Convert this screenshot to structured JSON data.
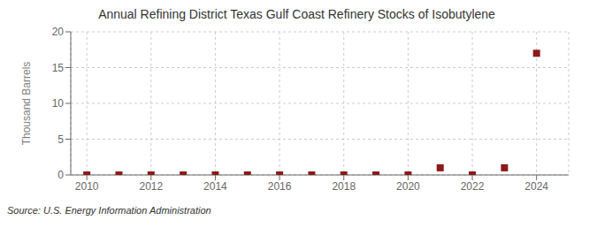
{
  "chart_data": {
    "type": "scatter",
    "title": "Annual Refining District Texas Gulf Coast Refinery Stocks of Isobutylene",
    "ylabel": "Thousand Barrels",
    "annotation": "Source: U.S. Energy Information Administration",
    "x": [
      2010,
      2011,
      2012,
      2013,
      2014,
      2015,
      2016,
      2017,
      2018,
      2019,
      2020,
      2021,
      2022,
      2023,
      2024
    ],
    "values": [
      0,
      0,
      0,
      0,
      0,
      0,
      0,
      0,
      0,
      0,
      0,
      1,
      0,
      1,
      17
    ],
    "color": "#8b1a1a",
    "marker": "square",
    "xlim": [
      2009.5,
      2025.0
    ],
    "ylim": [
      0,
      20
    ],
    "xticks": [
      2010,
      2012,
      2014,
      2016,
      2018,
      2020,
      2022,
      2024
    ],
    "yticks": [
      0,
      5,
      10,
      15,
      20
    ],
    "grid": true
  }
}
